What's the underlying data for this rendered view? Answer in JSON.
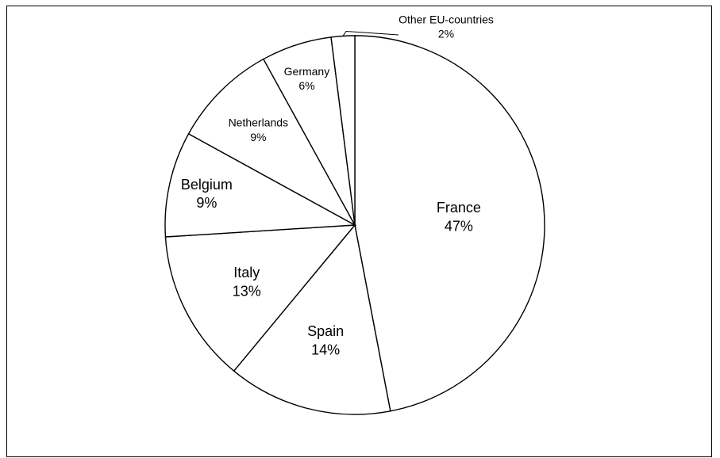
{
  "chart_data": {
    "type": "pie",
    "title": "",
    "slices": [
      {
        "label": "France",
        "value": 47,
        "value_label": "47%"
      },
      {
        "label": "Spain",
        "value": 14,
        "value_label": "14%"
      },
      {
        "label": "Italy",
        "value": 13,
        "value_label": "13%"
      },
      {
        "label": "Belgium",
        "value": 9,
        "value_label": "9%"
      },
      {
        "label": "Netherlands",
        "value": 9,
        "value_label": "9%"
      },
      {
        "label": "Germany",
        "value": 6,
        "value_label": "6%"
      },
      {
        "label": "Other EU-countries",
        "value": 2,
        "value_label": "2%"
      }
    ],
    "slice_fill": "#ffffff",
    "slice_stroke": "#000000",
    "start_angle": "12 o'clock",
    "direction": "clockwise",
    "legend": "none"
  }
}
